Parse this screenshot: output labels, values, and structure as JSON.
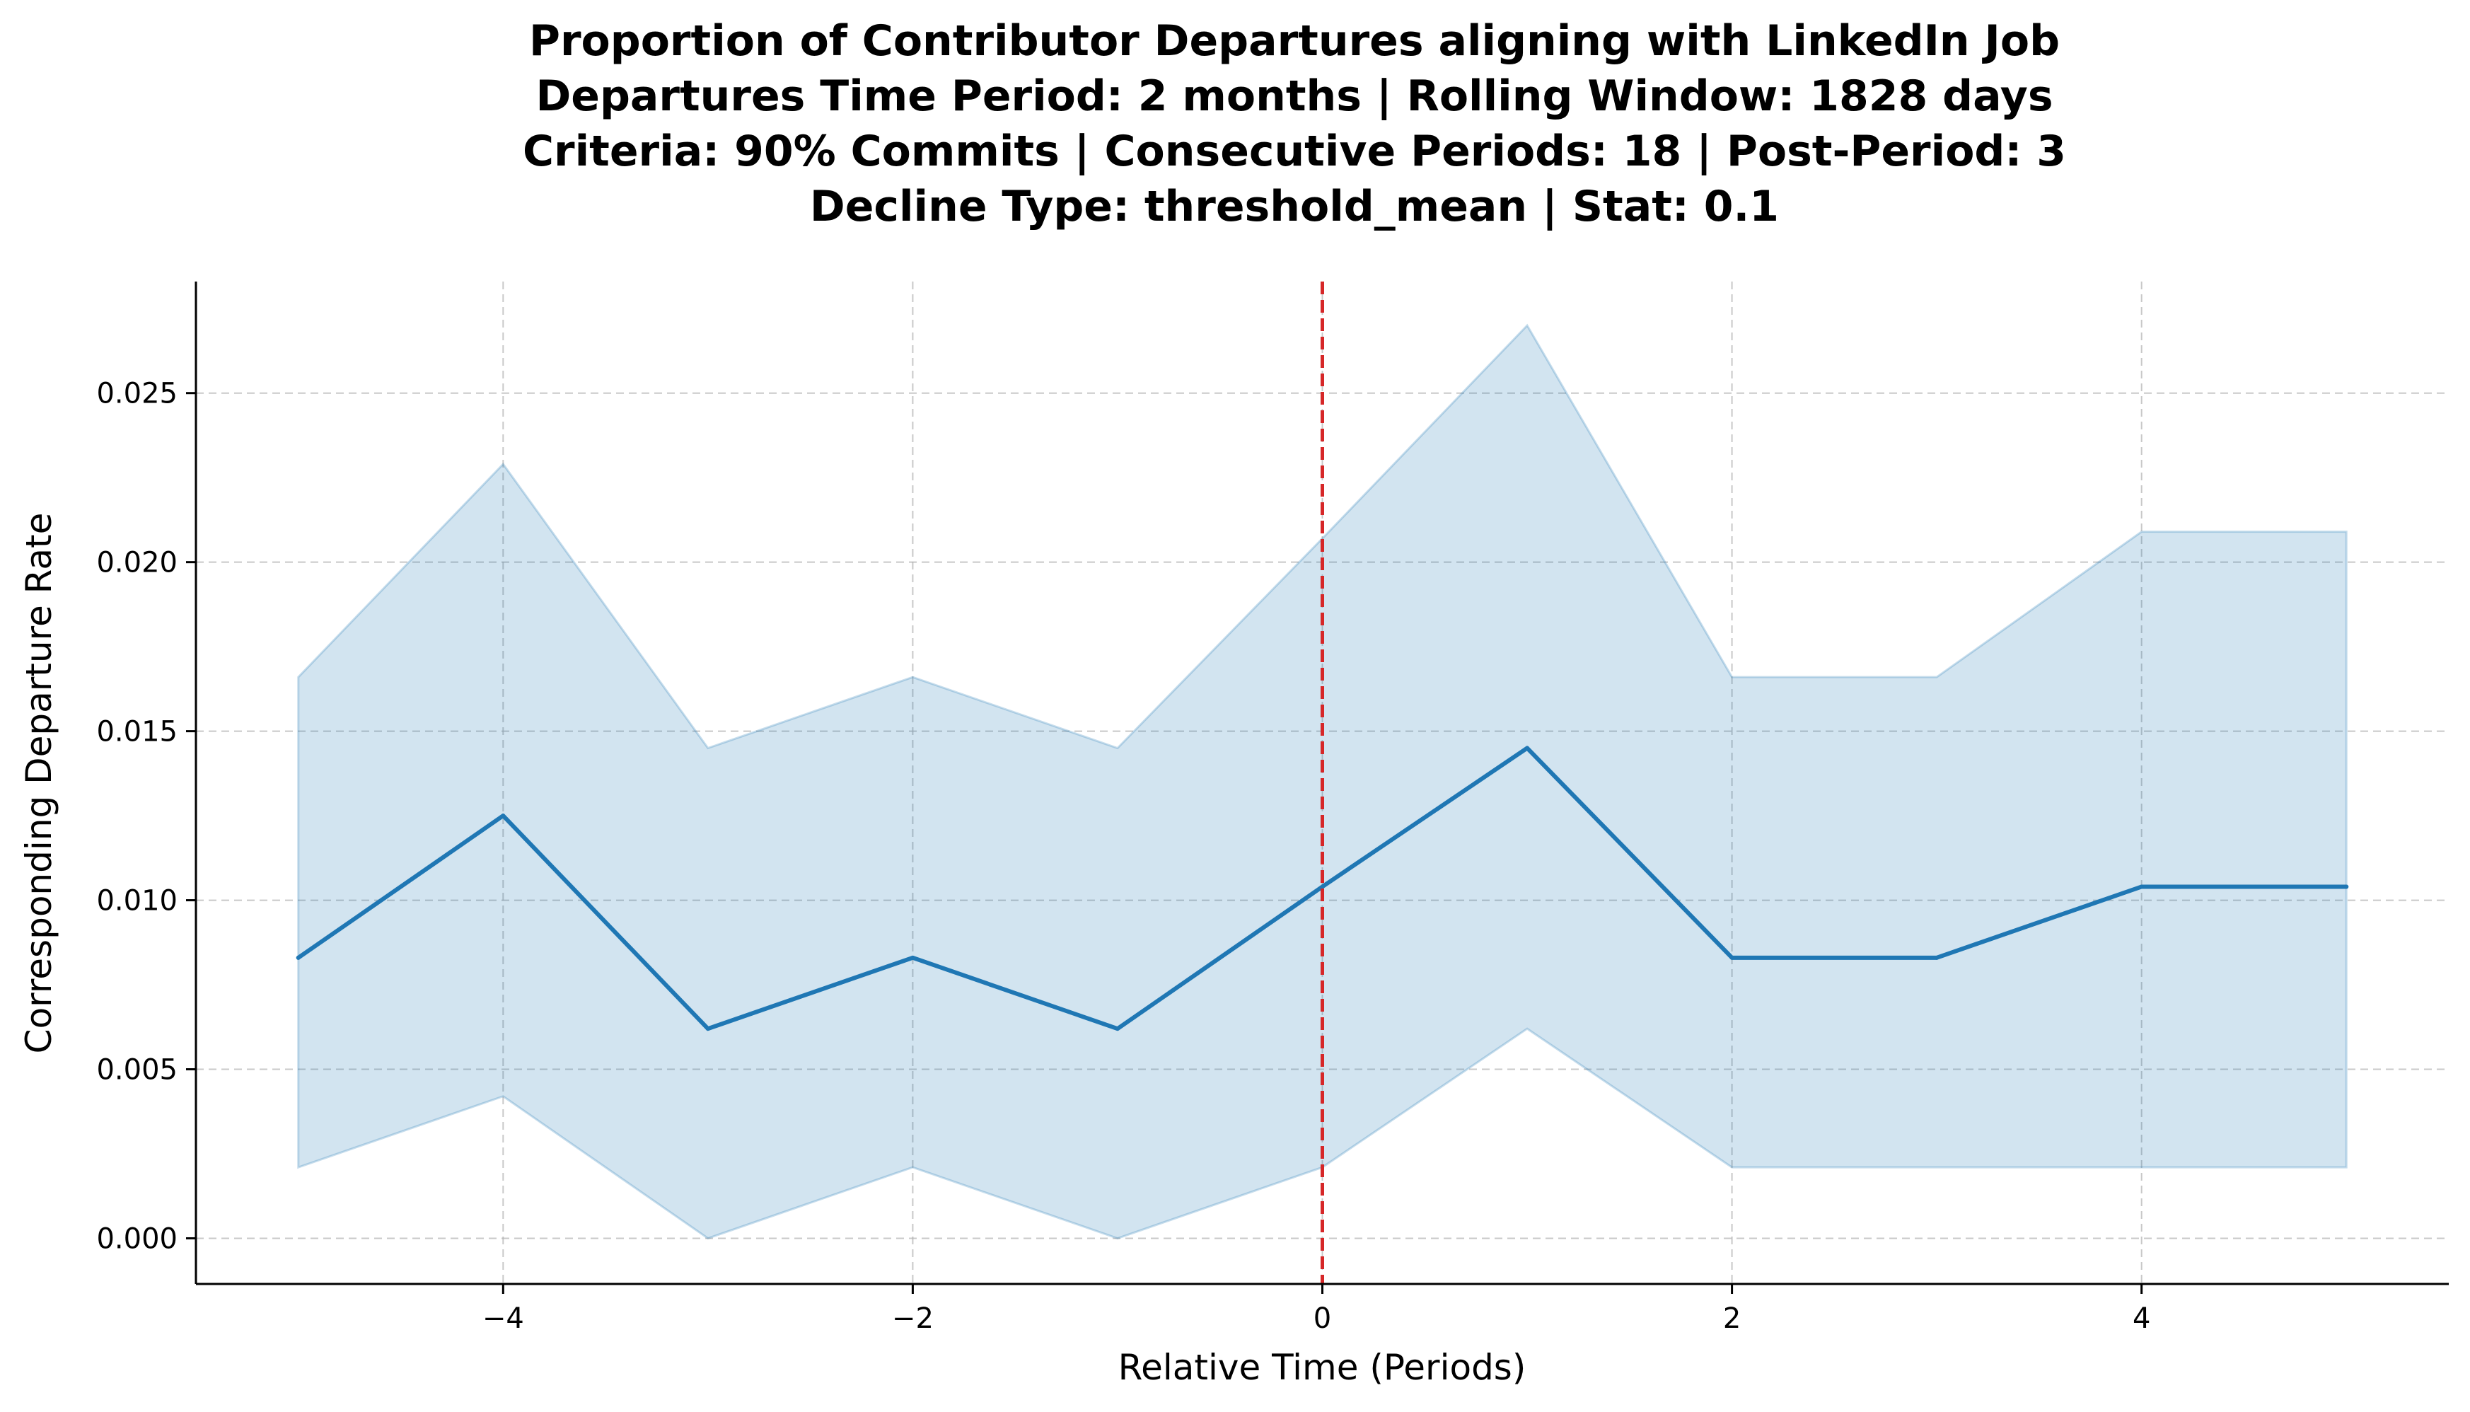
{
  "chart_data": {
    "type": "line",
    "title_lines": [
      "Proportion of Contributor Departures aligning with LinkedIn Job",
      "Departures Time Period: 2 months | Rolling Window: 1828 days",
      "Criteria: 90% Commits | Consecutive Periods: 18 | Post-Period: 3",
      "Decline Type: threshold_mean | Stat: 0.1"
    ],
    "xlabel": "Relative Time (Periods)",
    "ylabel": "Corresponding Departure Rate",
    "xlim": [
      -5.5,
      5.5
    ],
    "ylim": [
      -0.00135,
      0.0283
    ],
    "x_ticks": [
      -4,
      -2,
      0,
      2,
      4
    ],
    "x_tick_labels": [
      "−4",
      "−2",
      "0",
      "2",
      "4"
    ],
    "y_ticks": [
      0.0,
      0.005,
      0.01,
      0.015,
      0.02,
      0.025
    ],
    "y_tick_labels": [
      "0.000",
      "0.005",
      "0.010",
      "0.015",
      "0.020",
      "0.025"
    ],
    "grid": true,
    "series": [
      {
        "x": [
          -5,
          -4,
          -3,
          -2,
          -1,
          0,
          1,
          2,
          3,
          4,
          5
        ],
        "values": [
          0.0083,
          0.0125,
          0.0062,
          0.0083,
          0.0062,
          0.0104,
          0.0145,
          0.0083,
          0.0083,
          0.0104,
          0.0104
        ],
        "ci_lower": [
          0.0021,
          0.0042,
          0.0,
          0.0021,
          0.0,
          0.0021,
          0.0062,
          0.0021,
          0.0021,
          0.0021,
          0.0021
        ],
        "ci_upper": [
          0.0166,
          0.0229,
          0.0145,
          0.0166,
          0.0145,
          0.0207,
          0.027,
          0.0166,
          0.0166,
          0.0209,
          0.0209
        ]
      }
    ],
    "vline": {
      "x": 0,
      "style": "dashed"
    },
    "colors": {
      "line": "#1f77b4",
      "band": "#1f77b4",
      "vline": "#d62728",
      "grid": "#b0b0b0",
      "axis": "#000000"
    }
  }
}
